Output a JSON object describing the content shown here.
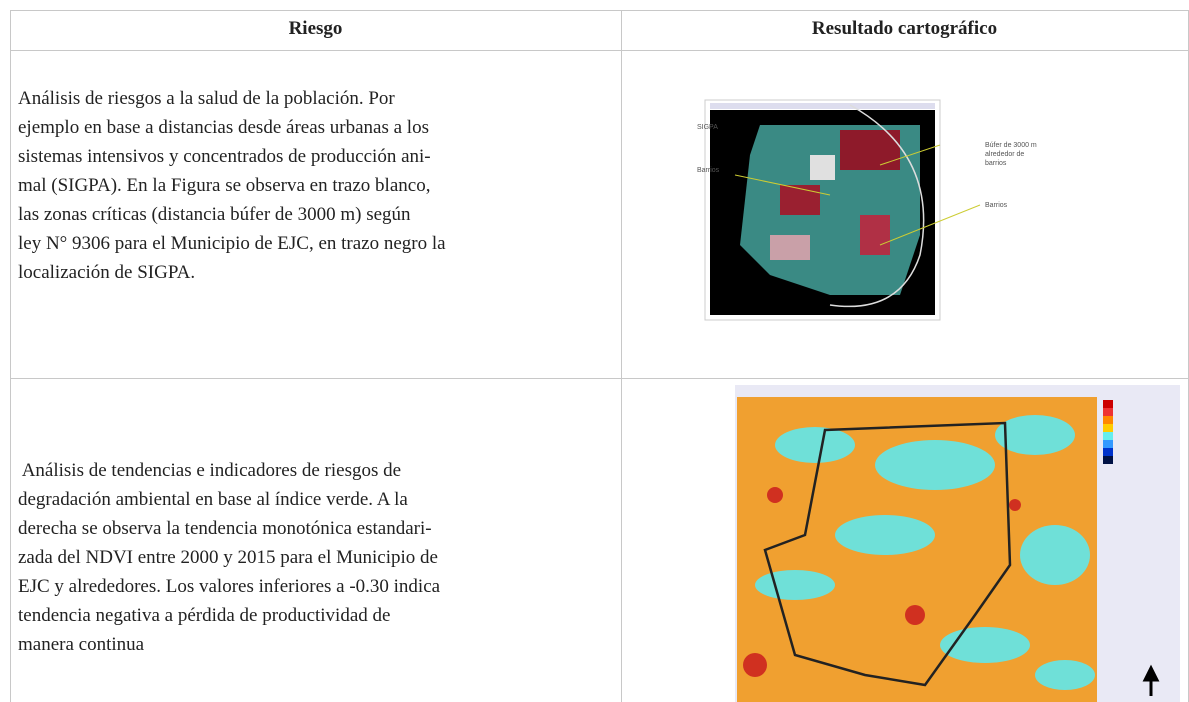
{
  "table": {
    "header": [
      "Riesgo",
      "Resultado cartográfico"
    ],
    "rows": [
      {
        "text_lines": [
          "Análisis de riesgos a la salud de la población. Por",
          "ejemplo en base a distancias desde áreas urbanas a los",
          "sistemas intensivos y concentrados de producción ani-",
          "mal (SIGPA). En la Figura se observa en trazo blanco,",
          "las zonas críticas (distancia búfer de 3000 m) según",
          "ley N° 9306 para el Municipio de EJC, en trazo negro la",
          "localización de SIGPA."
        ],
        "map_labels": [
          "SIGPA",
          "Barrios",
          "Búfer de 3000 m",
          "alrededor de",
          "barrios",
          "Barrios"
        ]
      },
      {
        "text_lines": [
          " Análisis de tendencias e indicadores de riesgos de",
          "degradación ambiental en base al índice verde. A la",
          "derecha se observa la tendencia monotónica estandari-",
          "zada del NDVI entre 2000 y 2015 para el Municipio de",
          "EJC y alrededores. Los valores inferiores a -0.30 indica",
          "tendencia negativa a pérdida de productividad de",
          "manera continua"
        ]
      }
    ]
  }
}
